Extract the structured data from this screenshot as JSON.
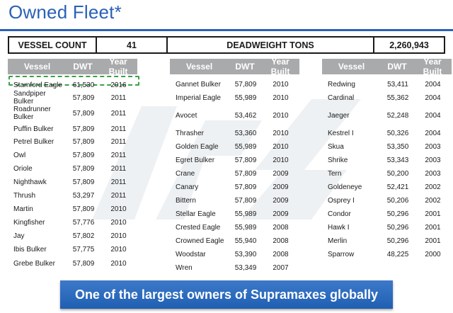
{
  "title": "Owned Fleet*",
  "summary": {
    "vessel_count_label": "VESSEL COUNT",
    "vessel_count_value": "41",
    "dwt_label": "DEADWEIGHT TONS",
    "dwt_value": "2,260,943"
  },
  "columns": {
    "vessel": "Vessel",
    "dwt": "DWT",
    "year": "Year Built"
  },
  "table1": [
    {
      "vessel": "Stamford Eagle",
      "dwt": "61,530",
      "year": "2016"
    },
    {
      "vessel": "Sandpiper Bulker",
      "dwt": "57,809",
      "year": "2011"
    },
    {
      "vessel": "Roadrunner Bulker",
      "dwt": "57,809",
      "year": "2011"
    },
    {
      "vessel": "Puffin Bulker",
      "dwt": "57,809",
      "year": "2011"
    },
    {
      "vessel": "Petrel Bulker",
      "dwt": "57,809",
      "year": "2011"
    },
    {
      "vessel": "Owl",
      "dwt": "57,809",
      "year": "2011"
    },
    {
      "vessel": "Oriole",
      "dwt": "57,809",
      "year": "2011"
    },
    {
      "vessel": "Nighthawk",
      "dwt": "57,809",
      "year": "2011"
    },
    {
      "vessel": "Thrush",
      "dwt": "53,297",
      "year": "2011"
    },
    {
      "vessel": "Martin",
      "dwt": "57,809",
      "year": "2010"
    },
    {
      "vessel": "Kingfisher",
      "dwt": "57,776",
      "year": "2010"
    },
    {
      "vessel": "Jay",
      "dwt": "57,802",
      "year": "2010"
    },
    {
      "vessel": "Ibis Bulker",
      "dwt": "57,775",
      "year": "2010"
    },
    {
      "vessel": "Grebe Bulker",
      "dwt": "57,809",
      "year": "2010"
    }
  ],
  "table2": [
    {
      "vessel": "Gannet Bulker",
      "dwt": "57,809",
      "year": "2010"
    },
    {
      "vessel": "Imperial Eagle",
      "dwt": "55,989",
      "year": "2010"
    },
    {
      "vessel": "Avocet",
      "dwt": "53,462",
      "year": "2010"
    },
    {
      "vessel": "Thrasher",
      "dwt": "53,360",
      "year": "2010"
    },
    {
      "vessel": "Golden Eagle",
      "dwt": "55,989",
      "year": "2010"
    },
    {
      "vessel": "Egret Bulker",
      "dwt": "57,809",
      "year": "2010"
    },
    {
      "vessel": "Crane",
      "dwt": "57,809",
      "year": "2009"
    },
    {
      "vessel": "Canary",
      "dwt": "57,809",
      "year": "2009"
    },
    {
      "vessel": "Bittern",
      "dwt": "57,809",
      "year": "2009"
    },
    {
      "vessel": "Stellar Eagle",
      "dwt": "55,989",
      "year": "2009"
    },
    {
      "vessel": "Crested Eagle",
      "dwt": "55,989",
      "year": "2008"
    },
    {
      "vessel": "Crowned Eagle",
      "dwt": "55,940",
      "year": "2008"
    },
    {
      "vessel": "Woodstar",
      "dwt": "53,390",
      "year": "2008"
    },
    {
      "vessel": "Wren",
      "dwt": "53,349",
      "year": "2007"
    }
  ],
  "table3": [
    {
      "vessel": "Redwing",
      "dwt": "53,411",
      "year": "2004"
    },
    {
      "vessel": "Cardinal",
      "dwt": "55,362",
      "year": "2004"
    },
    {
      "vessel": "Jaeger",
      "dwt": "52,248",
      "year": "2004"
    },
    {
      "vessel": "Kestrel I",
      "dwt": "50,326",
      "year": "2004"
    },
    {
      "vessel": "Skua",
      "dwt": "53,350",
      "year": "2003"
    },
    {
      "vessel": "Shrike",
      "dwt": "53,343",
      "year": "2003"
    },
    {
      "vessel": "Tern",
      "dwt": "50,200",
      "year": "2003"
    },
    {
      "vessel": "Goldeneye",
      "dwt": "52,421",
      "year": "2002"
    },
    {
      "vessel": "Osprey I",
      "dwt": "50,206",
      "year": "2002"
    },
    {
      "vessel": "Condor",
      "dwt": "50,296",
      "year": "2001"
    },
    {
      "vessel": "Hawk I",
      "dwt": "50,296",
      "year": "2001"
    },
    {
      "vessel": "Merlin",
      "dwt": "50,296",
      "year": "2001"
    },
    {
      "vessel": "Sparrow",
      "dwt": "48,225",
      "year": "2000"
    }
  ],
  "banner": "One of the largest owners of Supramaxes globally"
}
